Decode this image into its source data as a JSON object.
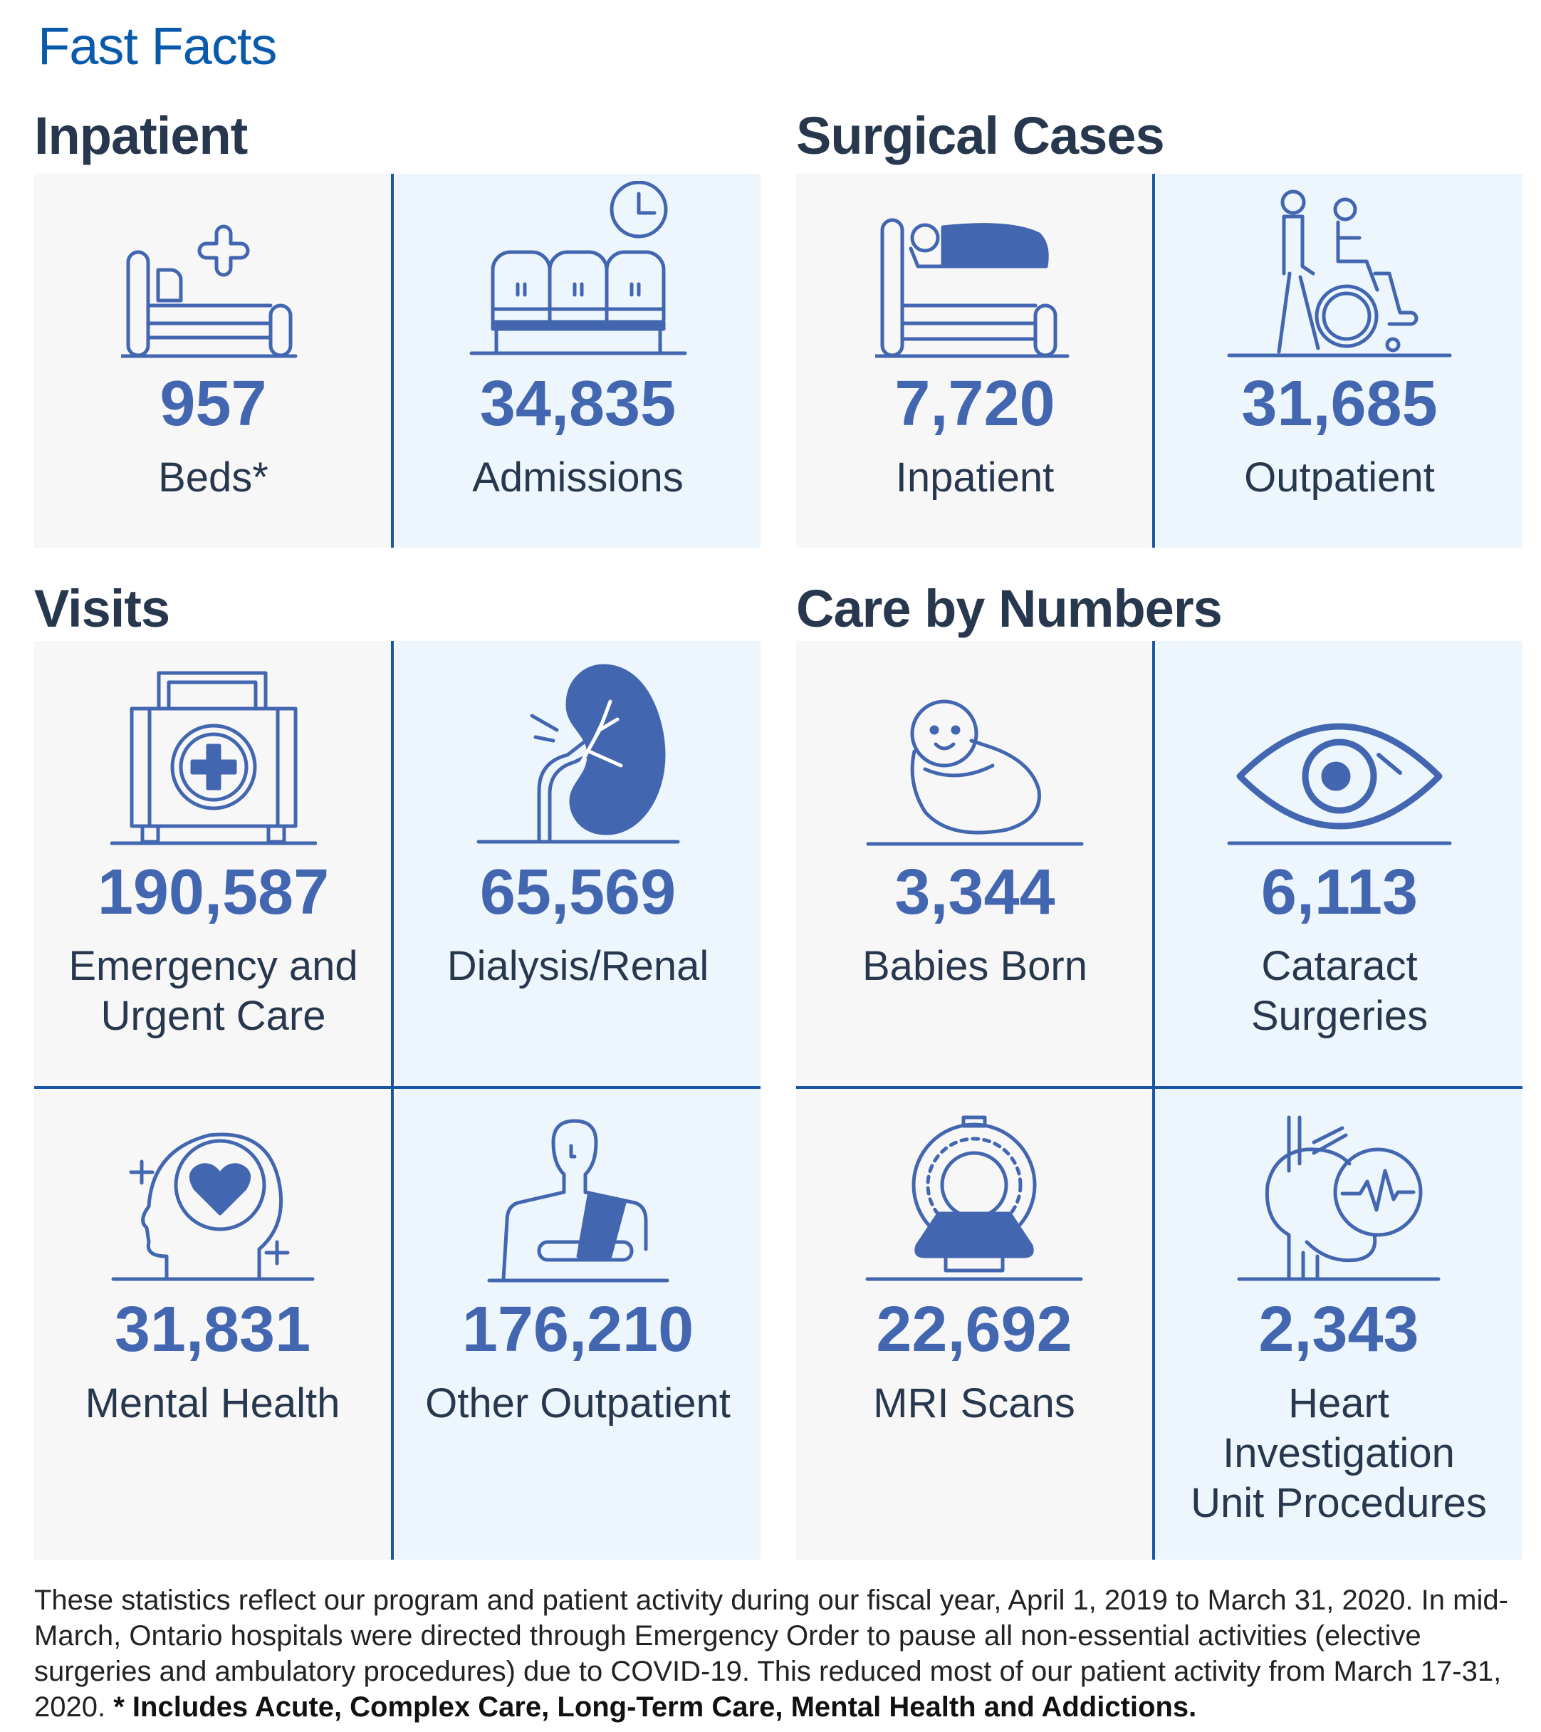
{
  "title": "Fast Facts",
  "sections": {
    "inpatient": "Inpatient",
    "surgical": "Surgical Cases",
    "visits": "Visits",
    "care": "Care by Numbers"
  },
  "tiles": [
    {
      "icon": "hospital-bed-icon",
      "value": "957",
      "label": "Beds*"
    },
    {
      "icon": "waiting-room-icon",
      "value": "34,835",
      "label": "Admissions"
    },
    {
      "icon": "patient-in-bed-icon",
      "value": "7,720",
      "label": "Inpatient"
    },
    {
      "icon": "wheelchair-icon",
      "value": "31,685",
      "label": "Outpatient"
    },
    {
      "icon": "first-aid-kit-icon",
      "value": "190,587",
      "label": "Emergency and Urgent Care"
    },
    {
      "icon": "kidney-icon",
      "value": "65,569",
      "label": "Dialysis/Renal"
    },
    {
      "icon": "baby-icon",
      "value": "3,344",
      "label": "Babies Born"
    },
    {
      "icon": "eye-icon",
      "value": "6,113",
      "label": "Cataract Surgeries"
    },
    {
      "icon": "mental-health-icon",
      "value": "31,831",
      "label": "Mental Health"
    },
    {
      "icon": "arm-sling-icon",
      "value": "176,210",
      "label": "Other Outpatient"
    },
    {
      "icon": "mri-scanner-icon",
      "value": "22,692",
      "label": "MRI Scans"
    },
    {
      "icon": "heart-monitor-icon",
      "value": "2,343",
      "label": "Heart Investigation Unit Procedures"
    }
  ],
  "footnote": {
    "text": "These statistics reflect our program and patient activity during our fiscal year, April 1, 2019 to March 31, 2020. In mid-March, Ontario hospitals were directed through Emergency Order to pause all non-essential activities (elective surgeries and ambulatory procedures) due to COVID-19. This reduced most of our patient activity from March 17-31, 2020.",
    "bold": "* Includes Acute, Complex Care, Long-Term Care, Mental Health and Addictions."
  },
  "colors": {
    "title": "#0a5aab",
    "accent": "#4366b0",
    "divider": "#1a56a8",
    "tile_gray": "#f7f7f7",
    "tile_blue": "#ecf6fc",
    "heading": "#27374d"
  }
}
